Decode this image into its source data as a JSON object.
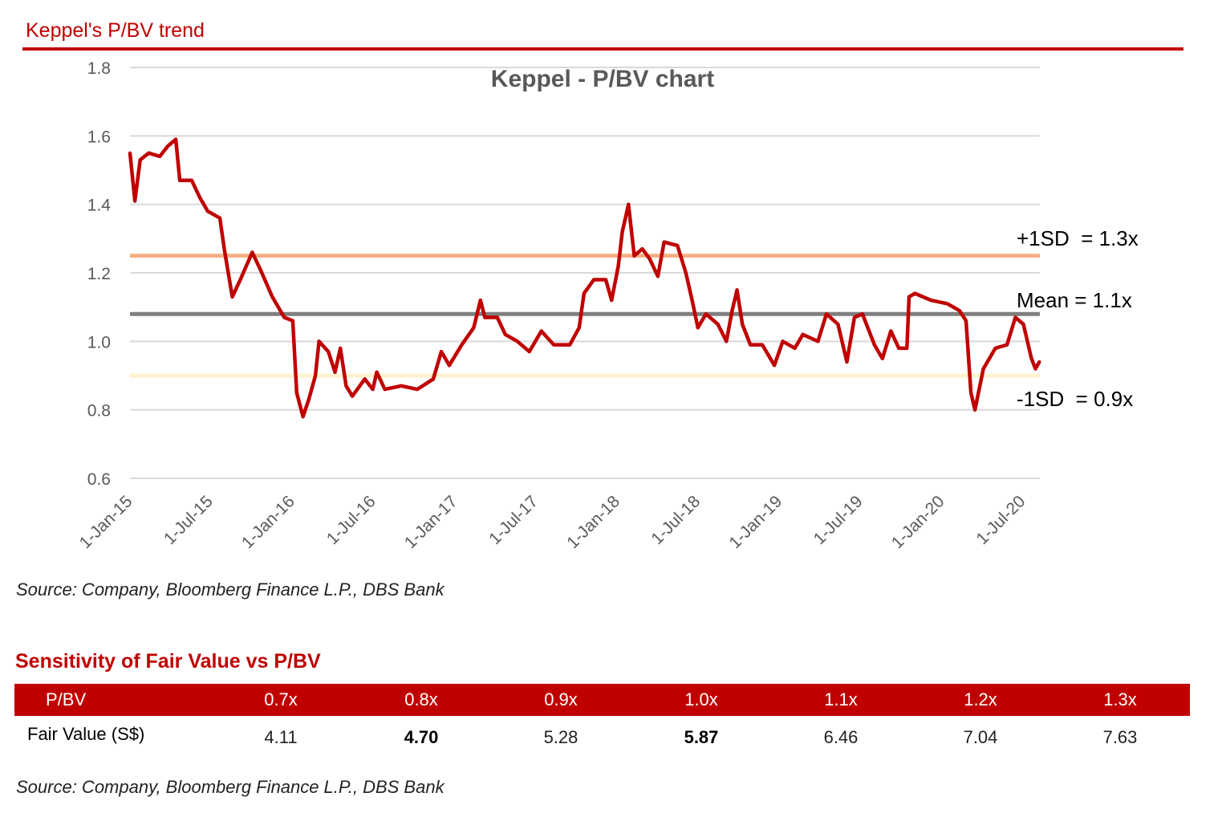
{
  "section_title": "Keppel's P/BV trend",
  "chart_data": {
    "type": "line",
    "title": "Keppel - P/BV chart",
    "xlabel": "",
    "ylabel": "",
    "ylim": [
      0.6,
      1.8
    ],
    "yticks": [
      "0.6",
      "0.8",
      "1.0",
      "1.2",
      "1.4",
      "1.6",
      "1.8"
    ],
    "xlim": [
      "2015-01-01",
      "2020-08-08"
    ],
    "xticks": [
      {
        "date": "2015-01-01",
        "label": "1-Jan-15"
      },
      {
        "date": "2015-07-01",
        "label": "1-Jul-15"
      },
      {
        "date": "2016-01-01",
        "label": "1-Jan-16"
      },
      {
        "date": "2016-07-01",
        "label": "1-Jul-16"
      },
      {
        "date": "2017-01-01",
        "label": "1-Jan-17"
      },
      {
        "date": "2017-07-01",
        "label": "1-Jul-17"
      },
      {
        "date": "2018-01-01",
        "label": "1-Jan-18"
      },
      {
        "date": "2018-07-01",
        "label": "1-Jul-18"
      },
      {
        "date": "2019-01-01",
        "label": "1-Jan-19"
      },
      {
        "date": "2019-07-01",
        "label": "1-Jul-19"
      },
      {
        "date": "2020-01-01",
        "label": "1-Jan-20"
      },
      {
        "date": "2020-07-01",
        "label": "1-Jul-20"
      }
    ],
    "grid": true,
    "series": [
      {
        "color": "#c00000",
        "x": [
          "2015-01-01",
          "2015-01-12",
          "2015-01-24",
          "2015-02-12",
          "2015-03-09",
          "2015-03-27",
          "2015-04-14",
          "2015-04-23",
          "2015-05-20",
          "2015-06-07",
          "2015-06-25",
          "2015-07-22",
          "2015-08-01",
          "2015-08-19",
          "2015-09-06",
          "2015-10-03",
          "2015-10-21",
          "2015-11-17",
          "2015-12-14",
          "2016-01-02",
          "2016-01-11",
          "2016-01-25",
          "2016-02-07",
          "2016-02-22",
          "2016-03-01",
          "2016-03-22",
          "2016-04-06",
          "2016-04-18",
          "2016-05-01",
          "2016-05-15",
          "2016-06-12",
          "2016-06-30",
          "2016-07-09",
          "2016-07-27",
          "2016-09-02",
          "2016-10-08",
          "2016-11-13",
          "2016-12-01",
          "2016-12-19",
          "2017-01-16",
          "2017-02-12",
          "2017-02-27",
          "2017-03-09",
          "2017-04-06",
          "2017-04-24",
          "2017-05-21",
          "2017-06-17",
          "2017-07-14",
          "2017-08-11",
          "2017-09-16",
          "2017-10-07",
          "2017-10-18",
          "2017-11-09",
          "2017-12-06",
          "2017-12-19",
          "2018-01-03",
          "2018-01-12",
          "2018-01-26",
          "2018-02-08",
          "2018-02-26",
          "2018-03-15",
          "2018-04-02",
          "2018-04-16",
          "2018-05-16",
          "2018-06-04",
          "2018-06-18",
          "2018-07-01",
          "2018-07-19",
          "2018-08-15",
          "2018-09-03",
          "2018-09-16",
          "2018-09-27",
          "2018-10-09",
          "2018-10-27",
          "2018-11-23",
          "2018-12-20",
          "2019-01-08",
          "2019-02-04",
          "2019-02-22",
          "2019-03-28",
          "2019-04-16",
          "2019-05-12",
          "2019-06-01",
          "2019-06-18",
          "2019-07-06",
          "2019-08-02",
          "2019-08-20",
          "2019-09-08",
          "2019-09-26",
          "2019-10-14",
          "2019-10-19",
          "2019-11-01",
          "2019-12-07",
          "2020-01-13",
          "2020-02-09",
          "2020-02-24",
          "2020-03-06",
          "2020-03-15",
          "2020-04-03",
          "2020-04-30",
          "2020-05-26",
          "2020-06-14",
          "2020-07-02",
          "2020-07-20",
          "2020-07-29",
          "2020-08-07"
        ],
        "values": [
          1.55,
          1.41,
          1.53,
          1.55,
          1.54,
          1.57,
          1.59,
          1.47,
          1.47,
          1.42,
          1.38,
          1.36,
          1.27,
          1.13,
          1.18,
          1.26,
          1.21,
          1.13,
          1.07,
          1.06,
          0.85,
          0.78,
          0.83,
          0.9,
          1.0,
          0.97,
          0.91,
          0.98,
          0.87,
          0.84,
          0.89,
          0.86,
          0.91,
          0.86,
          0.87,
          0.86,
          0.89,
          0.97,
          0.93,
          0.99,
          1.04,
          1.12,
          1.07,
          1.07,
          1.02,
          1.0,
          0.97,
          1.03,
          0.99,
          0.99,
          1.04,
          1.14,
          1.18,
          1.18,
          1.12,
          1.22,
          1.32,
          1.4,
          1.25,
          1.27,
          1.24,
          1.19,
          1.29,
          1.28,
          1.2,
          1.12,
          1.04,
          1.08,
          1.05,
          1.0,
          1.09,
          1.15,
          1.05,
          0.99,
          0.99,
          0.93,
          1.0,
          0.98,
          1.02,
          1.0,
          1.08,
          1.05,
          0.94,
          1.07,
          1.08,
          0.99,
          0.95,
          1.03,
          0.98,
          0.98,
          1.13,
          1.14,
          1.12,
          1.11,
          1.09,
          1.06,
          0.85,
          0.8,
          0.92,
          0.98,
          0.99,
          1.07,
          1.05,
          0.95,
          0.92,
          0.94
        ]
      }
    ],
    "reference_lines": [
      {
        "label": "+1SD  = 1.3x",
        "value": 1.25,
        "color": "#f4b183"
      },
      {
        "label": "Mean = 1.1x",
        "value": 1.08,
        "color": "#7f7f7f"
      },
      {
        "label": "-1SD  = 0.9x",
        "value": 0.9,
        "color": "#fff2cc"
      }
    ]
  },
  "chart_source": "Source: Company, Bloomberg Finance L.P., DBS Bank",
  "table": {
    "title": "Sensitivity of Fair Value vs P/BV",
    "row_header": "P/BV",
    "columns": [
      "0.7x",
      "0.8x",
      "0.9x",
      "1.0x",
      "1.1x",
      "1.2x",
      "1.3x"
    ],
    "row_label": "Fair Value (S$)",
    "values": [
      "4.11",
      "4.70",
      "5.28",
      "5.87",
      "6.46",
      "7.04",
      "7.63"
    ],
    "bold_columns": [
      1,
      3
    ]
  },
  "table_source": "Source: Company, Bloomberg Finance L.P., DBS Bank"
}
